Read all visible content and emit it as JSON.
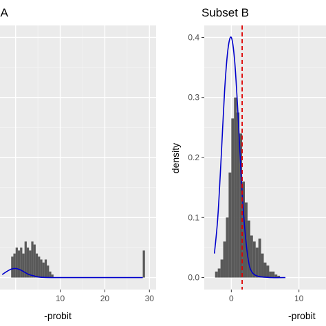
{
  "chart_data": [
    {
      "type": "bar",
      "title": "Subset A",
      "title_visible": "t A",
      "xlabel": "-probit",
      "ylabel": "",
      "xlim": [
        -3.5,
        31.5
      ],
      "ylim": [
        -0.02,
        0.42
      ],
      "x_ticks": [
        10,
        20,
        30
      ],
      "y_ticks": [],
      "grid": true,
      "bin_width": 0.5,
      "histogram": {
        "x": [
          -1.0,
          -0.5,
          0.0,
          0.5,
          1.0,
          1.5,
          2.0,
          2.5,
          3.0,
          3.5,
          4.0,
          4.5,
          5.0,
          5.5,
          6.0,
          6.5,
          7.0,
          7.5,
          8.0,
          28.5
        ],
        "density": [
          0.035,
          0.04,
          0.05,
          0.045,
          0.05,
          0.04,
          0.06,
          0.05,
          0.045,
          0.06,
          0.055,
          0.04,
          0.035,
          0.03,
          0.025,
          0.03,
          0.02,
          0.01,
          0.005,
          0.045
        ]
      },
      "normal_curve": {
        "color": "#0000cc",
        "x": [
          -3,
          -2,
          -1,
          0,
          1,
          2,
          3,
          4,
          5,
          6,
          8,
          10,
          15,
          20,
          25,
          28.5
        ],
        "y": [
          0.005,
          0.01,
          0.014,
          0.015,
          0.013,
          0.009,
          0.005,
          0.003,
          0.001,
          0.0004,
          0,
          0,
          0,
          0,
          0,
          0
        ]
      }
    },
    {
      "type": "bar",
      "title": "Subset B",
      "xlabel": "-probit",
      "ylabel": "density",
      "xlim": [
        -4,
        14
      ],
      "ylim": [
        -0.02,
        0.42
      ],
      "x_ticks": [
        0,
        10
      ],
      "y_ticks": [
        0.0,
        0.1,
        0.2,
        0.3,
        0.4
      ],
      "y_tick_labels": [
        "0.0",
        "0.1",
        "0.2",
        "0.3",
        "0.4"
      ],
      "grid": true,
      "bin_width": 0.4,
      "histogram": {
        "x": [
          -2.4,
          -2.0,
          -1.6,
          -1.2,
          -0.8,
          -0.4,
          0.0,
          0.4,
          0.8,
          1.2,
          1.6,
          2.0,
          2.4,
          2.8,
          3.2,
          3.6,
          4.0,
          4.4,
          4.8,
          5.2,
          5.6,
          6.0,
          6.4,
          6.8
        ],
        "density": [
          0.01,
          0.015,
          0.03,
          0.06,
          0.1,
          0.175,
          0.265,
          0.3,
          0.275,
          0.24,
          0.16,
          0.125,
          0.095,
          0.07,
          0.06,
          0.05,
          0.065,
          0.04,
          0.025,
          0.02,
          0.01,
          0.01,
          0.005,
          0.003
        ]
      },
      "normal_curve": {
        "color": "#0000cc",
        "x": [
          -2.5,
          -2.0,
          -1.5,
          -1.0,
          -0.5,
          0.0,
          0.5,
          1.0,
          1.5,
          2.0,
          2.5,
          3.0,
          4.0,
          6.0,
          8.0
        ],
        "y": [
          0.04,
          0.1,
          0.2,
          0.31,
          0.38,
          0.4,
          0.36,
          0.27,
          0.16,
          0.08,
          0.03,
          0.01,
          0.002,
          0,
          0
        ]
      },
      "vline": {
        "x": 1.6,
        "color": "#dd0000",
        "style": "dashed"
      }
    }
  ]
}
